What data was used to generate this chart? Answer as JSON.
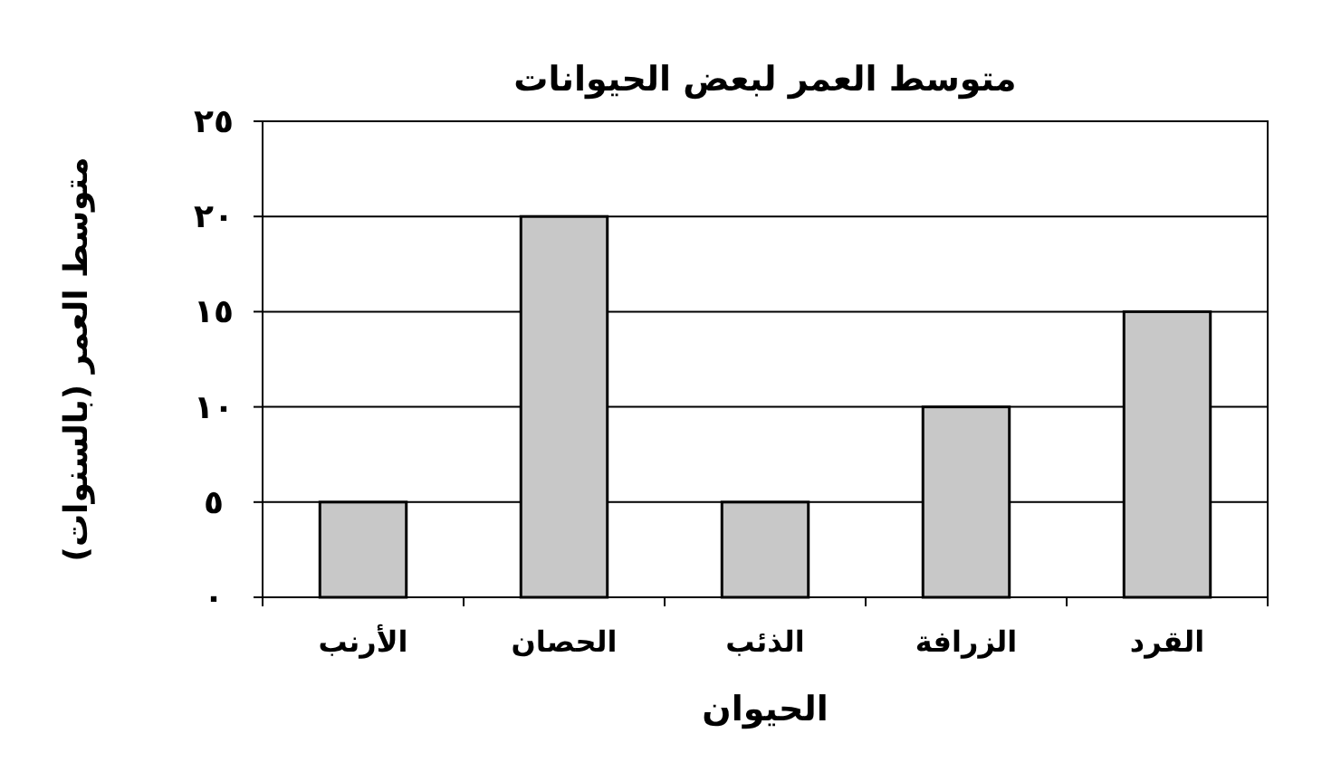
{
  "chart_data": {
    "type": "bar",
    "title": "متوسط العمر لبعض الحيوانات",
    "xlabel": "الحيوان",
    "ylabel": "متوسط العمر (بالسنوات)",
    "categories": [
      "الأرنب",
      "الحصان",
      "الذئب",
      "الزرافة",
      "القرد"
    ],
    "values": [
      5,
      20,
      5,
      10,
      15
    ],
    "color": "#c8c8c8",
    "ylim": [
      0,
      25
    ],
    "yticks": [
      {
        "value": 0,
        "label": "٠"
      },
      {
        "value": 5,
        "label": "٥"
      },
      {
        "value": 10,
        "label": "١٠"
      },
      {
        "value": 15,
        "label": "١٥"
      },
      {
        "value": 20,
        "label": "٢٠"
      },
      {
        "value": 25,
        "label": "٢٥"
      }
    ],
    "grid": "y"
  }
}
